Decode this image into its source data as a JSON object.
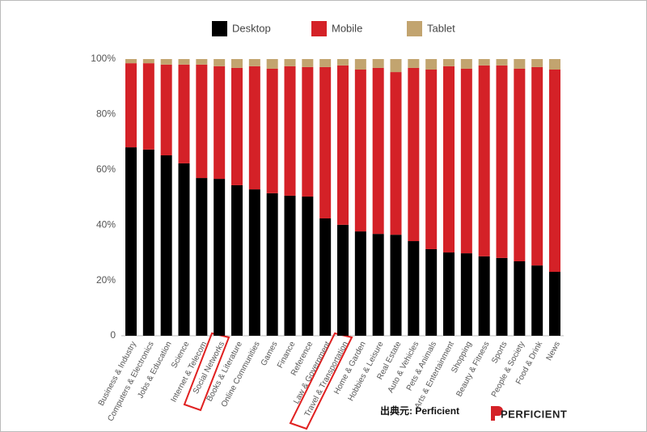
{
  "chart_data": {
    "type": "stacked_bar",
    "categories": [
      "Business & Industry",
      "Computers & Electronics",
      "Jobs & Education",
      "Science",
      "Internet & Telecom",
      "Social Networks",
      "Books & Literature",
      "Online Communities",
      "Games",
      "Finance",
      "Reference",
      "Law & Government",
      "Travel & Transportation",
      "Home & Garden",
      "Hobbies & Leisure",
      "Real Estate",
      "Auto & Vehicles",
      "Pets & Animals",
      "Arts & Entertainment",
      "Shopping",
      "Beauty & Fitness",
      "Sports",
      "People & Society",
      "Food & Drink",
      "News"
    ],
    "series": [
      {
        "name": "Desktop",
        "color": "#000000",
        "values": [
          68.1,
          67.3,
          65.2,
          62.3,
          57.0,
          56.7,
          54.4,
          52.9,
          51.5,
          50.6,
          50.3,
          42.4,
          40.1,
          37.7,
          36.8,
          36.5,
          34.2,
          31.3,
          30.1,
          29.8,
          28.7,
          28.1,
          26.9,
          25.4,
          23.1
        ]
      },
      {
        "name": "Mobile",
        "color": "#d42127",
        "values": [
          30.4,
          31.2,
          32.8,
          35.7,
          41.0,
          40.7,
          42.4,
          44.5,
          45.0,
          46.8,
          46.8,
          54.7,
          57.6,
          58.5,
          60.0,
          58.8,
          62.6,
          64.9,
          67.3,
          66.7,
          69.0,
          69.6,
          69.6,
          71.7,
          73.1
        ]
      },
      {
        "name": "Tablet",
        "color": "#c2a46f",
        "values": [
          1.5,
          1.5,
          2.0,
          2.0,
          2.0,
          2.6,
          3.2,
          2.6,
          3.5,
          2.6,
          2.9,
          2.9,
          2.3,
          3.8,
          3.2,
          4.7,
          3.2,
          3.8,
          2.6,
          3.5,
          2.3,
          2.3,
          3.5,
          2.9,
          3.8
        ]
      }
    ],
    "ylim": [
      0,
      100
    ],
    "yticks": [
      0,
      {
        "value": 20,
        "label": "20%"
      },
      {
        "value": 40,
        "label": "40%"
      },
      {
        "value": 60,
        "label": "60%"
      },
      {
        "value": 80,
        "label": "80%"
      },
      {
        "value": 100,
        "label": "100%"
      }
    ],
    "source": "出典元: Perficient",
    "logo": "PERFICIENT"
  }
}
